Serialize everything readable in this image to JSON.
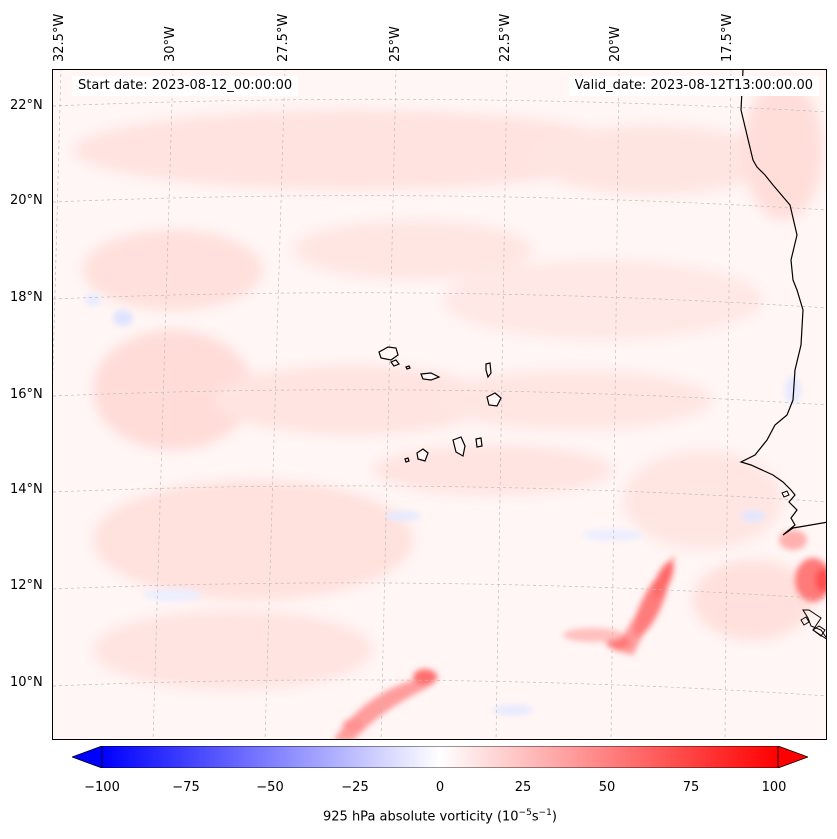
{
  "header": {
    "start_date": "Start date: 2023-08-12_00:00:00",
    "valid_date": "Valid_date: 2023-08-12T13:00:00.00"
  },
  "map": {
    "longitude_labels": [
      "32.5°W",
      "30°W",
      "27.5°W",
      "25°W",
      "22.5°W",
      "20°W",
      "17.5°W"
    ],
    "latitude_labels": [
      "22°N",
      "20°N",
      "18°N",
      "16°N",
      "14°N",
      "12°N",
      "10°N"
    ],
    "field": "925 hPa absolute vorticity",
    "colormap": "bwr",
    "gridlines": true,
    "colors": {
      "coast": "#000000",
      "grid": "#bdbdbd",
      "positive": "#ff0000",
      "negative": "#0000ff",
      "zero": "#ffffff"
    }
  },
  "colorbar": {
    "ticks": [
      "−100",
      "−75",
      "−50",
      "−25",
      "0",
      "25",
      "50",
      "75",
      "100"
    ],
    "range": [
      -100,
      100
    ],
    "extend": "both",
    "label_prefix": "925 hPa absolute vorticity (10",
    "label_exp1": "−5",
    "label_mid": "s",
    "label_exp2": "−1",
    "label_suffix": ")"
  }
}
